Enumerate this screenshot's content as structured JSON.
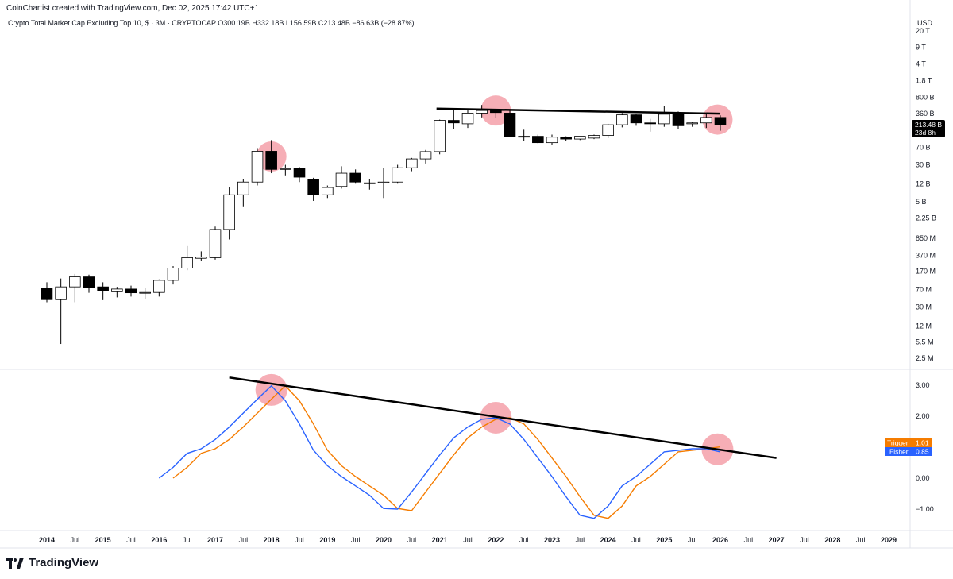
{
  "header": {
    "created_by": "CoinChartist created with TradingView.com, Dec 02, 2025 17:42 UTC+1",
    "legend": "Crypto Total Market Cap Excluding Top 10, $ · 3M · CRYPTOCAP  O300.19B  H332.18B  L156.59B  C213.48B  −86.63B (−28.87%)",
    "currency": "USD"
  },
  "price_badge": {
    "value": "213.48 B",
    "countdown": "23d 8h",
    "color": "#000000"
  },
  "trigger_badge": {
    "label": "Trigger",
    "value": "1.01",
    "color": "#f57c00"
  },
  "fisher_badge": {
    "label": "Fisher",
    "value": "0.85",
    "color": "#2962ff"
  },
  "branding": {
    "name": "TradingView"
  },
  "colors": {
    "trigger": "#f57c00",
    "fisher": "#2962ff",
    "highlight": "#f28b97",
    "bull": "#ffffff",
    "bear": "#000000"
  },
  "chart_data": [
    {
      "type": "candlestick",
      "series_name": "Crypto Total Market Cap Excluding Top 10",
      "timeframe": "3M",
      "y_scale": "log",
      "y_ticks": [
        "20 T",
        "9 T",
        "4 T",
        "1.8 T",
        "800 B",
        "360 B",
        "160 B",
        "70 B",
        "30 B",
        "12 B",
        "5 B",
        "2.25 B",
        "850 M",
        "370 M",
        "170 M",
        "70 M",
        "30 M",
        "12 M",
        "5.5 M",
        "2.5 M"
      ],
      "y_tick_values": [
        20000000000000.0,
        9000000000000.0,
        4000000000000.0,
        1800000000000.0,
        800000000000.0,
        360000000000.0,
        160000000000.0,
        70000000000.0,
        30000000000.0,
        12000000000.0,
        5000000000.0,
        2250000000.0,
        850000000.0,
        370000000.0,
        170000000.0,
        70000000.0,
        30000000.0,
        12000000.0,
        5500000.0,
        2500000.0
      ],
      "last_close": "213.48 B",
      "candles": [
        {
          "t": 2014.0,
          "o": 75000000.0,
          "h": 100000000.0,
          "l": 38000000.0,
          "c": 43000000.0
        },
        {
          "t": 2014.25,
          "o": 43000000.0,
          "h": 120000000.0,
          "l": 5000000.0,
          "c": 80000000.0
        },
        {
          "t": 2014.5,
          "o": 80000000.0,
          "h": 150000000.0,
          "l": 38000000.0,
          "c": 130000000.0
        },
        {
          "t": 2014.75,
          "o": 130000000.0,
          "h": 145000000.0,
          "l": 60000000.0,
          "c": 78000000.0
        },
        {
          "t": 2015.0,
          "o": 80000000.0,
          "h": 100000000.0,
          "l": 42000000.0,
          "c": 65000000.0
        },
        {
          "t": 2015.25,
          "o": 63000000.0,
          "h": 80000000.0,
          "l": 48000000.0,
          "c": 72000000.0
        },
        {
          "t": 2015.5,
          "o": 72000000.0,
          "h": 85000000.0,
          "l": 50000000.0,
          "c": 60000000.0
        },
        {
          "t": 2015.75,
          "o": 60000000.0,
          "h": 75000000.0,
          "l": 45000000.0,
          "c": 61000000.0
        },
        {
          "t": 2016.0,
          "o": 61000000.0,
          "h": 115000000.0,
          "l": 50000000.0,
          "c": 110000000.0
        },
        {
          "t": 2016.25,
          "o": 110000000.0,
          "h": 220000000.0,
          "l": 90000000.0,
          "c": 200000000.0
        },
        {
          "t": 2016.5,
          "o": 200000000.0,
          "h": 580000000.0,
          "l": 180000000.0,
          "c": 330000000.0
        },
        {
          "t": 2016.75,
          "o": 320000000.0,
          "h": 450000000.0,
          "l": 280000000.0,
          "c": 340000000.0
        },
        {
          "t": 2017.0,
          "o": 330000000.0,
          "h": 1500000000.0,
          "l": 300000000.0,
          "c": 1300000000.0
        },
        {
          "t": 2017.25,
          "o": 1300000000.0,
          "h": 10000000000.0,
          "l": 800000000.0,
          "c": 7000000000.0
        },
        {
          "t": 2017.5,
          "o": 7000000000.0,
          "h": 15000000000.0,
          "l": 4000000000.0,
          "c": 13000000000.0
        },
        {
          "t": 2017.75,
          "o": 13000000000.0,
          "h": 68000000000.0,
          "l": 11000000000.0,
          "c": 58000000000.0
        },
        {
          "t": 2018.0,
          "o": 58000000000.0,
          "h": 100000000000.0,
          "l": 20000000000.0,
          "c": 24000000000.0
        },
        {
          "t": 2018.25,
          "o": 24000000000.0,
          "h": 30000000000.0,
          "l": 18000000000.0,
          "c": 25000000000.0
        },
        {
          "t": 2018.5,
          "o": 25000000000.0,
          "h": 27000000000.0,
          "l": 13000000000.0,
          "c": 16500000000.0
        },
        {
          "t": 2018.75,
          "o": 15000000000.0,
          "h": 16000000000.0,
          "l": 5200000000.0,
          "c": 7000000000.0
        },
        {
          "t": 2019.0,
          "o": 7000000000.0,
          "h": 11000000000.0,
          "l": 6000000000.0,
          "c": 10000000000.0
        },
        {
          "t": 2019.25,
          "o": 10500000000.0,
          "h": 28000000000.0,
          "l": 9500000000.0,
          "c": 20000000000.0
        },
        {
          "t": 2019.5,
          "o": 20000000000.0,
          "h": 24000000000.0,
          "l": 12000000000.0,
          "c": 13000000000.0
        },
        {
          "t": 2019.75,
          "o": 12000000000.0,
          "h": 15000000000.0,
          "l": 9000000000.0,
          "c": 12500000000.0
        },
        {
          "t": 2020.0,
          "o": 12500000000.0,
          "h": 26000000000.0,
          "l": 6000000000.0,
          "c": 13000000000.0
        },
        {
          "t": 2020.25,
          "o": 13000000000.0,
          "h": 30000000000.0,
          "l": 12000000000.0,
          "c": 26000000000.0
        },
        {
          "t": 2020.5,
          "o": 26000000000.0,
          "h": 42000000000.0,
          "l": 22000000000.0,
          "c": 40000000000.0
        },
        {
          "t": 2020.75,
          "o": 40000000000.0,
          "h": 62000000000.0,
          "l": 32000000000.0,
          "c": 57000000000.0
        },
        {
          "t": 2021.0,
          "o": 57000000000.0,
          "h": 270000000000.0,
          "l": 50000000000.0,
          "c": 260000000000.0
        },
        {
          "t": 2021.25,
          "o": 260000000000.0,
          "h": 450000000000.0,
          "l": 170000000000.0,
          "c": 230000000000.0
        },
        {
          "t": 2021.5,
          "o": 220000000000.0,
          "h": 450000000000.0,
          "l": 180000000000.0,
          "c": 370000000000.0
        },
        {
          "t": 2021.75,
          "o": 370000000000.0,
          "h": 550000000000.0,
          "l": 300000000000.0,
          "c": 420000000000.0
        },
        {
          "t": 2022.0,
          "o": 420000000000.0,
          "h": 450000000000.0,
          "l": 290000000000.0,
          "c": 380000000000.0
        },
        {
          "t": 2022.25,
          "o": 370000000000.0,
          "h": 430000000000.0,
          "l": 115000000000.0,
          "c": 120000000000.0
        },
        {
          "t": 2022.5,
          "o": 120000000000.0,
          "h": 165000000000.0,
          "l": 95000000000.0,
          "c": 115000000000.0
        },
        {
          "t": 2022.75,
          "o": 120000000000.0,
          "h": 130000000000.0,
          "l": 85000000000.0,
          "c": 88000000000.0
        },
        {
          "t": 2023.0,
          "o": 88000000000.0,
          "h": 130000000000.0,
          "l": 80000000000.0,
          "c": 115000000000.0
        },
        {
          "t": 2023.25,
          "o": 115000000000.0,
          "h": 120000000000.0,
          "l": 95000000000.0,
          "c": 105000000000.0
        },
        {
          "t": 2023.5,
          "o": 105000000000.0,
          "h": 120000000000.0,
          "l": 100000000000.0,
          "c": 120000000000.0
        },
        {
          "t": 2023.75,
          "o": 110000000000.0,
          "h": 130000000000.0,
          "l": 105000000000.0,
          "c": 125000000000.0
        },
        {
          "t": 2024.0,
          "o": 125000000000.0,
          "h": 220000000000.0,
          "l": 110000000000.0,
          "c": 210000000000.0
        },
        {
          "t": 2024.25,
          "o": 210000000000.0,
          "h": 370000000000.0,
          "l": 185000000000.0,
          "c": 340000000000.0
        },
        {
          "t": 2024.5,
          "o": 340000000000.0,
          "h": 360000000000.0,
          "l": 200000000000.0,
          "c": 230000000000.0
        },
        {
          "t": 2024.75,
          "o": 230000000000.0,
          "h": 280000000000.0,
          "l": 150000000000.0,
          "c": 220000000000.0
        },
        {
          "t": 2025.0,
          "o": 220000000000.0,
          "h": 530000000000.0,
          "l": 190000000000.0,
          "c": 350000000000.0
        },
        {
          "t": 2025.25,
          "o": 350000000000.0,
          "h": 400000000000.0,
          "l": 170000000000.0,
          "c": 200000000000.0
        },
        {
          "t": 2025.5,
          "o": 220000000000.0,
          "h": 240000000000.0,
          "l": 190000000000.0,
          "c": 230000000000.0
        },
        {
          "t": 2025.75,
          "o": 230000000000.0,
          "h": 360000000000.0,
          "l": 180000000000.0,
          "c": 300000000000.0
        },
        {
          "t": 2026.0,
          "o": 300000000000.0,
          "h": 332000000000.0,
          "l": 157000000000.0,
          "c": 213000000000.0
        }
      ],
      "trendline": {
        "from": {
          "t": 2021.0,
          "v": 460000000000.0
        },
        "to": {
          "t": 2026.0,
          "v": 360000000000.0
        }
      },
      "highlights": [
        {
          "t": 2018.0,
          "v": 45000000000.0
        },
        {
          "t": 2022.0,
          "v": 420000000000.0
        },
        {
          "t": 2025.95,
          "v": 270000000000.0
        }
      ]
    },
    {
      "type": "line",
      "title": "",
      "y_ticks": [
        "3.00",
        "2.00",
        "1.00",
        "0.00",
        "−1.00"
      ],
      "y_tick_values": [
        3,
        2,
        1,
        0,
        -1
      ],
      "series": [
        {
          "name": "Fisher",
          "color": "#2962ff",
          "points": [
            [
              2016.0,
              0.0
            ],
            [
              2016.25,
              0.35
            ],
            [
              2016.5,
              0.8
            ],
            [
              2016.75,
              0.95
            ],
            [
              2017.0,
              1.25
            ],
            [
              2017.25,
              1.65
            ],
            [
              2017.5,
              2.1
            ],
            [
              2017.75,
              2.55
            ],
            [
              2018.0,
              2.98
            ],
            [
              2018.25,
              2.5
            ],
            [
              2018.5,
              1.75
            ],
            [
              2018.75,
              0.9
            ],
            [
              2019.0,
              0.4
            ],
            [
              2019.25,
              0.05
            ],
            [
              2019.5,
              -0.25
            ],
            [
              2019.75,
              -0.55
            ],
            [
              2020.0,
              -0.98
            ],
            [
              2020.25,
              -1.0
            ],
            [
              2020.5,
              -0.45
            ],
            [
              2020.75,
              0.15
            ],
            [
              2021.0,
              0.75
            ],
            [
              2021.25,
              1.3
            ],
            [
              2021.5,
              1.65
            ],
            [
              2021.75,
              1.9
            ],
            [
              2022.0,
              1.95
            ],
            [
              2022.25,
              1.75
            ],
            [
              2022.5,
              1.25
            ],
            [
              2022.75,
              0.65
            ],
            [
              2023.0,
              0.05
            ],
            [
              2023.25,
              -0.6
            ],
            [
              2023.5,
              -1.2
            ],
            [
              2023.75,
              -1.3
            ],
            [
              2024.0,
              -0.9
            ],
            [
              2024.25,
              -0.25
            ],
            [
              2024.5,
              0.05
            ],
            [
              2024.75,
              0.45
            ],
            [
              2025.0,
              0.85
            ],
            [
              2025.25,
              0.9
            ],
            [
              2025.5,
              0.95
            ],
            [
              2025.75,
              0.95
            ],
            [
              2026.0,
              0.85
            ]
          ]
        },
        {
          "name": "Trigger",
          "color": "#f57c00",
          "points": [
            [
              2016.25,
              0.0
            ],
            [
              2016.5,
              0.35
            ],
            [
              2016.75,
              0.8
            ],
            [
              2017.0,
              0.95
            ],
            [
              2017.25,
              1.25
            ],
            [
              2017.5,
              1.65
            ],
            [
              2017.75,
              2.1
            ],
            [
              2018.0,
              2.55
            ],
            [
              2018.25,
              2.98
            ],
            [
              2018.5,
              2.5
            ],
            [
              2018.75,
              1.75
            ],
            [
              2019.0,
              0.9
            ],
            [
              2019.25,
              0.4
            ],
            [
              2019.5,
              0.05
            ],
            [
              2019.75,
              -0.25
            ],
            [
              2020.0,
              -0.55
            ],
            [
              2020.25,
              -0.98
            ],
            [
              2020.5,
              -1.05
            ],
            [
              2020.75,
              -0.45
            ],
            [
              2021.0,
              0.15
            ],
            [
              2021.25,
              0.75
            ],
            [
              2021.5,
              1.3
            ],
            [
              2021.75,
              1.65
            ],
            [
              2022.0,
              1.9
            ],
            [
              2022.25,
              1.95
            ],
            [
              2022.5,
              1.75
            ],
            [
              2022.75,
              1.25
            ],
            [
              2023.0,
              0.65
            ],
            [
              2023.25,
              0.05
            ],
            [
              2023.5,
              -0.6
            ],
            [
              2023.75,
              -1.2
            ],
            [
              2024.0,
              -1.3
            ],
            [
              2024.25,
              -0.9
            ],
            [
              2024.5,
              -0.25
            ],
            [
              2024.75,
              0.05
            ],
            [
              2025.0,
              0.45
            ],
            [
              2025.25,
              0.85
            ],
            [
              2025.5,
              0.9
            ],
            [
              2025.75,
              0.95
            ],
            [
              2026.0,
              1.01
            ]
          ]
        }
      ],
      "trendline": {
        "from": {
          "t": 2017.25,
          "v": 3.25
        },
        "to": {
          "t": 2027.0,
          "v": 0.65
        }
      },
      "highlights": [
        {
          "t": 2018.0,
          "v": 2.85
        },
        {
          "t": 2022.0,
          "v": 1.95
        },
        {
          "t": 2025.95,
          "v": 0.93
        }
      ]
    }
  ],
  "x_axis": {
    "labels": [
      {
        "t": 2014.0,
        "text": "2014",
        "year": true
      },
      {
        "t": 2014.5,
        "text": "Jul",
        "year": false
      },
      {
        "t": 2015.0,
        "text": "2015",
        "year": true
      },
      {
        "t": 2015.5,
        "text": "Jul",
        "year": false
      },
      {
        "t": 2016.0,
        "text": "2016",
        "year": true
      },
      {
        "t": 2016.5,
        "text": "Jul",
        "year": false
      },
      {
        "t": 2017.0,
        "text": "2017",
        "year": true
      },
      {
        "t": 2017.5,
        "text": "Jul",
        "year": false
      },
      {
        "t": 2018.0,
        "text": "2018",
        "year": true
      },
      {
        "t": 2018.5,
        "text": "Jul",
        "year": false
      },
      {
        "t": 2019.0,
        "text": "2019",
        "year": true
      },
      {
        "t": 2019.5,
        "text": "Jul",
        "year": false
      },
      {
        "t": 2020.0,
        "text": "2020",
        "year": true
      },
      {
        "t": 2020.5,
        "text": "Jul",
        "year": false
      },
      {
        "t": 2021.0,
        "text": "2021",
        "year": true
      },
      {
        "t": 2021.5,
        "text": "Jul",
        "year": false
      },
      {
        "t": 2022.0,
        "text": "2022",
        "year": true
      },
      {
        "t": 2022.5,
        "text": "Jul",
        "year": false
      },
      {
        "t": 2023.0,
        "text": "2023",
        "year": true
      },
      {
        "t": 2023.5,
        "text": "Jul",
        "year": false
      },
      {
        "t": 2024.0,
        "text": "2024",
        "year": true
      },
      {
        "t": 2024.5,
        "text": "Jul",
        "year": false
      },
      {
        "t": 2025.0,
        "text": "2025",
        "year": true
      },
      {
        "t": 2025.5,
        "text": "Jul",
        "year": false
      },
      {
        "t": 2026.0,
        "text": "2026",
        "year": true
      },
      {
        "t": 2026.5,
        "text": "Jul",
        "year": false
      },
      {
        "t": 2027.0,
        "text": "2027",
        "year": true
      },
      {
        "t": 2027.5,
        "text": "Jul",
        "year": false
      },
      {
        "t": 2028.0,
        "text": "2028",
        "year": true
      },
      {
        "t": 2028.5,
        "text": "Jul",
        "year": false
      },
      {
        "t": 2029.0,
        "text": "2029",
        "year": true
      }
    ]
  }
}
